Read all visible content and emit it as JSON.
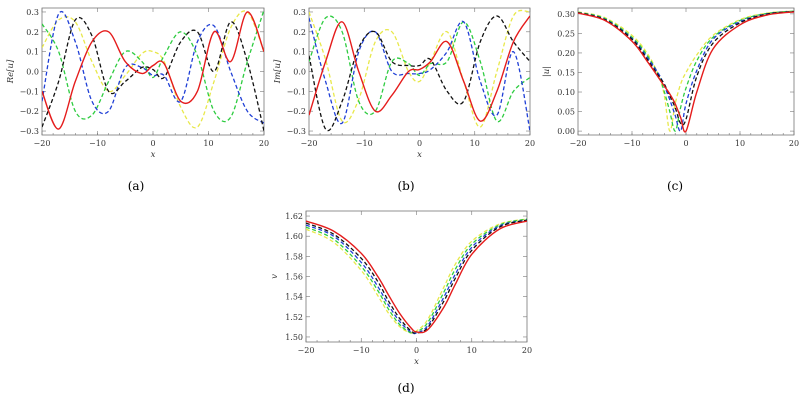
{
  "chart_data": [
    {
      "type": "line",
      "caption": "(a)",
      "xlabel": "x",
      "ylabel": "Re[u]",
      "xlim": [
        -20,
        20
      ],
      "ylim": [
        -0.32,
        0.32
      ],
      "xticks": [
        "-20",
        "-10",
        "0",
        "10",
        "20"
      ],
      "yticks": [
        "-0.3",
        "-0.2",
        "-0.1",
        "0.0",
        "0.1",
        "0.2",
        "0.3"
      ],
      "series": [
        {
          "color": "#e8e84a",
          "dash": true,
          "x": [
            -20,
            -17,
            -14,
            -11,
            -8,
            -5,
            -2,
            0,
            2,
            5,
            8,
            11,
            14,
            17,
            20
          ],
          "y": [
            0.12,
            0.26,
            0.25,
            0.05,
            -0.1,
            -0.02,
            0.09,
            0.1,
            0.05,
            -0.18,
            -0.28,
            -0.05,
            0.22,
            0.3,
            0.1
          ]
        },
        {
          "color": "#2ecc40",
          "dash": true,
          "x": [
            -20,
            -17,
            -14,
            -11,
            -8,
            -5,
            -2,
            0,
            2,
            5,
            8,
            11,
            14,
            17,
            20
          ],
          "y": [
            0.24,
            0.1,
            -0.2,
            -0.22,
            -0.05,
            0.1,
            0.05,
            -0.03,
            0.08,
            0.2,
            0.08,
            -0.2,
            -0.23,
            0.05,
            0.31
          ]
        },
        {
          "color": "#1f3fd6",
          "dash": true,
          "x": [
            -20,
            -17,
            -14,
            -11,
            -8,
            -5,
            -2,
            0,
            2,
            5,
            8,
            11,
            14,
            17,
            20
          ],
          "y": [
            -0.15,
            0.29,
            0.15,
            -0.15,
            -0.2,
            0.02,
            0.02,
            -0.02,
            -0.02,
            -0.15,
            0.15,
            0.23,
            0.0,
            -0.2,
            -0.26
          ]
        },
        {
          "color": "#111111",
          "dash": true,
          "x": [
            -20,
            -17,
            -14,
            -11,
            -8,
            -5,
            -2,
            0,
            2,
            5,
            8,
            11,
            14,
            17,
            20
          ],
          "y": [
            -0.28,
            -0.05,
            0.26,
            0.18,
            -0.1,
            -0.05,
            0.02,
            0.01,
            -0.03,
            0.15,
            0.2,
            0.0,
            0.25,
            0.05,
            -0.3
          ]
        },
        {
          "color": "#e51c1c",
          "dash": false,
          "x": [
            -20,
            -17,
            -14,
            -11,
            -8,
            -5,
            -2,
            0,
            2,
            5,
            8,
            11,
            14,
            17,
            20
          ],
          "y": [
            -0.1,
            -0.29,
            -0.05,
            0.15,
            0.2,
            0.05,
            -0.01,
            0.03,
            0.04,
            -0.15,
            -0.1,
            0.2,
            0.05,
            0.3,
            0.1
          ]
        }
      ]
    },
    {
      "type": "line",
      "caption": "(b)",
      "xlabel": "x",
      "ylabel": "Im[u]",
      "xlim": [
        -20,
        20
      ],
      "ylim": [
        -0.32,
        0.32
      ],
      "xticks": [
        "-20",
        "-10",
        "0",
        "10",
        "20"
      ],
      "yticks": [
        "-0.3",
        "-0.2",
        "-0.1",
        "0.0",
        "0.1",
        "0.2",
        "0.3"
      ],
      "series": [
        {
          "color": "#e8e84a",
          "dash": true,
          "x": [
            -20,
            -17,
            -14,
            -11,
            -8,
            -5,
            -2,
            0,
            2,
            5,
            8,
            11,
            14,
            17,
            20
          ],
          "y": [
            0.3,
            0.06,
            -0.25,
            -0.14,
            0.15,
            0.2,
            0.0,
            -0.05,
            0.05,
            0.2,
            -0.05,
            -0.28,
            0.0,
            0.28,
            0.3
          ]
        },
        {
          "color": "#2ecc40",
          "dash": true,
          "x": [
            -20,
            -17,
            -14,
            -11,
            -8,
            -5,
            -2,
            0,
            2,
            5,
            8,
            11,
            14,
            17,
            20
          ],
          "y": [
            0.05,
            0.27,
            0.2,
            -0.15,
            -0.2,
            0.05,
            0.04,
            -0.02,
            0.04,
            0.05,
            0.25,
            0.05,
            -0.25,
            -0.1,
            -0.03
          ]
        },
        {
          "color": "#1f3fd6",
          "dash": true,
          "x": [
            -20,
            -17,
            -14,
            -11,
            -8,
            -5,
            -2,
            0,
            2,
            5,
            8,
            11,
            14,
            17,
            20
          ],
          "y": [
            0.27,
            -0.05,
            -0.26,
            0.1,
            0.2,
            0.0,
            -0.01,
            -0.01,
            0.01,
            0.1,
            0.25,
            -0.05,
            -0.22,
            0.1,
            -0.3
          ]
        },
        {
          "color": "#111111",
          "dash": true,
          "x": [
            -20,
            -17,
            -14,
            -11,
            -8,
            -5,
            -2,
            0,
            2,
            5,
            8,
            11,
            14,
            17,
            20
          ],
          "y": [
            0.08,
            -0.29,
            -0.15,
            0.12,
            0.2,
            0.05,
            0.03,
            0.03,
            0.06,
            -0.1,
            -0.15,
            0.15,
            0.28,
            0.15,
            0.05
          ]
        },
        {
          "color": "#e51c1c",
          "dash": false,
          "x": [
            -20,
            -17,
            -14,
            -11,
            -8,
            -5,
            -2,
            0,
            2,
            5,
            8,
            11,
            14,
            17,
            20
          ],
          "y": [
            -0.22,
            0.05,
            0.25,
            0.0,
            -0.2,
            -0.12,
            0.0,
            0.01,
            0.05,
            0.15,
            -0.05,
            -0.25,
            -0.1,
            0.15,
            0.28
          ]
        }
      ]
    },
    {
      "type": "line",
      "caption": "(c)",
      "xlabel": "",
      "ylabel": "|u|",
      "xlim": [
        -20,
        20
      ],
      "ylim": [
        -0.01,
        0.315
      ],
      "xticks": [
        "-20",
        "-10",
        "0",
        "10",
        "20"
      ],
      "yticks": [
        "0.00",
        "0.05",
        "0.10",
        "0.15",
        "0.20",
        "0.25",
        "0.30"
      ],
      "series": [
        {
          "color": "#e8e84a",
          "dash": true,
          "x": [
            -20,
            -15,
            -10,
            -7,
            -5,
            -4,
            -3,
            -2,
            -1,
            0,
            2,
            5,
            10,
            15,
            20
          ],
          "y": [
            0.305,
            0.29,
            0.245,
            0.195,
            0.14,
            0.09,
            0.0,
            0.07,
            0.12,
            0.15,
            0.195,
            0.245,
            0.285,
            0.302,
            0.307
          ]
        },
        {
          "color": "#2ecc40",
          "dash": true,
          "x": [
            -20,
            -15,
            -10,
            -7,
            -5,
            -4,
            -3,
            -2,
            -1,
            0,
            2,
            5,
            10,
            15,
            20
          ],
          "y": [
            0.304,
            0.288,
            0.24,
            0.19,
            0.14,
            0.1,
            0.05,
            0.0,
            0.06,
            0.11,
            0.18,
            0.24,
            0.283,
            0.301,
            0.307
          ]
        },
        {
          "color": "#1f3fd6",
          "dash": true,
          "x": [
            -20,
            -15,
            -10,
            -7,
            -5,
            -4,
            -3,
            -2,
            -1,
            0,
            2,
            5,
            10,
            15,
            20
          ],
          "y": [
            0.303,
            0.286,
            0.237,
            0.185,
            0.145,
            0.115,
            0.08,
            0.04,
            0.0,
            0.07,
            0.155,
            0.235,
            0.28,
            0.3,
            0.306
          ]
        },
        {
          "color": "#111111",
          "dash": true,
          "x": [
            -20,
            -15,
            -10,
            -7,
            -5,
            -4,
            -3,
            -2,
            -1,
            0,
            2,
            5,
            10,
            15,
            20
          ],
          "y": [
            0.303,
            0.285,
            0.235,
            0.18,
            0.14,
            0.12,
            0.09,
            0.06,
            0.02,
            0.03,
            0.14,
            0.225,
            0.277,
            0.299,
            0.306
          ]
        },
        {
          "color": "#e51c1c",
          "dash": false,
          "x": [
            -20,
            -15,
            -10,
            -7,
            -5,
            -4,
            -3,
            -2,
            -1,
            0,
            2,
            5,
            10,
            15,
            20
          ],
          "y": [
            0.302,
            0.283,
            0.23,
            0.175,
            0.135,
            0.115,
            0.095,
            0.07,
            0.035,
            0.0,
            0.1,
            0.21,
            0.272,
            0.297,
            0.305
          ]
        }
      ]
    },
    {
      "type": "line",
      "caption": "(d)",
      "xlabel": "x",
      "ylabel": "v",
      "xlim": [
        -20,
        20
      ],
      "ylim": [
        1.495,
        1.625
      ],
      "xticks": [
        "-20",
        "-10",
        "0",
        "10",
        "20"
      ],
      "yticks": [
        "1.50",
        "1.52",
        "1.54",
        "1.56",
        "1.58",
        "1.60",
        "1.62"
      ],
      "series": [
        {
          "color": "#e8e84a",
          "dash": true,
          "x": [
            -20,
            -15,
            -10,
            -7,
            -5,
            -3,
            -1,
            0,
            2,
            5,
            7,
            10,
            15,
            20
          ],
          "y": [
            1.607,
            1.594,
            1.566,
            1.541,
            1.523,
            1.51,
            1.504,
            1.506,
            1.517,
            1.55,
            1.572,
            1.595,
            1.612,
            1.617
          ]
        },
        {
          "color": "#2ecc40",
          "dash": true,
          "x": [
            -20,
            -15,
            -10,
            -7,
            -5,
            -3,
            -1,
            0,
            2,
            5,
            7,
            10,
            15,
            20
          ],
          "y": [
            1.609,
            1.597,
            1.57,
            1.546,
            1.527,
            1.512,
            1.504,
            1.505,
            1.514,
            1.545,
            1.567,
            1.592,
            1.611,
            1.617
          ]
        },
        {
          "color": "#1f3fd6",
          "dash": true,
          "x": [
            -20,
            -15,
            -10,
            -7,
            -5,
            -3,
            -1,
            0,
            2,
            5,
            7,
            10,
            15,
            20
          ],
          "y": [
            1.611,
            1.6,
            1.574,
            1.55,
            1.531,
            1.515,
            1.505,
            1.504,
            1.511,
            1.54,
            1.562,
            1.589,
            1.61,
            1.616
          ]
        },
        {
          "color": "#111111",
          "dash": true,
          "x": [
            -20,
            -15,
            -10,
            -7,
            -5,
            -3,
            -1,
            0,
            2,
            5,
            7,
            10,
            15,
            20
          ],
          "y": [
            1.613,
            1.602,
            1.578,
            1.555,
            1.535,
            1.518,
            1.506,
            1.504,
            1.509,
            1.536,
            1.558,
            1.586,
            1.609,
            1.616
          ]
        },
        {
          "color": "#e51c1c",
          "dash": false,
          "x": [
            -20,
            -15,
            -10,
            -7,
            -5,
            -3,
            -1,
            0,
            2,
            5,
            7,
            10,
            15,
            20
          ],
          "y": [
            1.615,
            1.605,
            1.583,
            1.56,
            1.541,
            1.523,
            1.509,
            1.505,
            1.507,
            1.53,
            1.552,
            1.582,
            1.607,
            1.615
          ]
        }
      ]
    }
  ]
}
